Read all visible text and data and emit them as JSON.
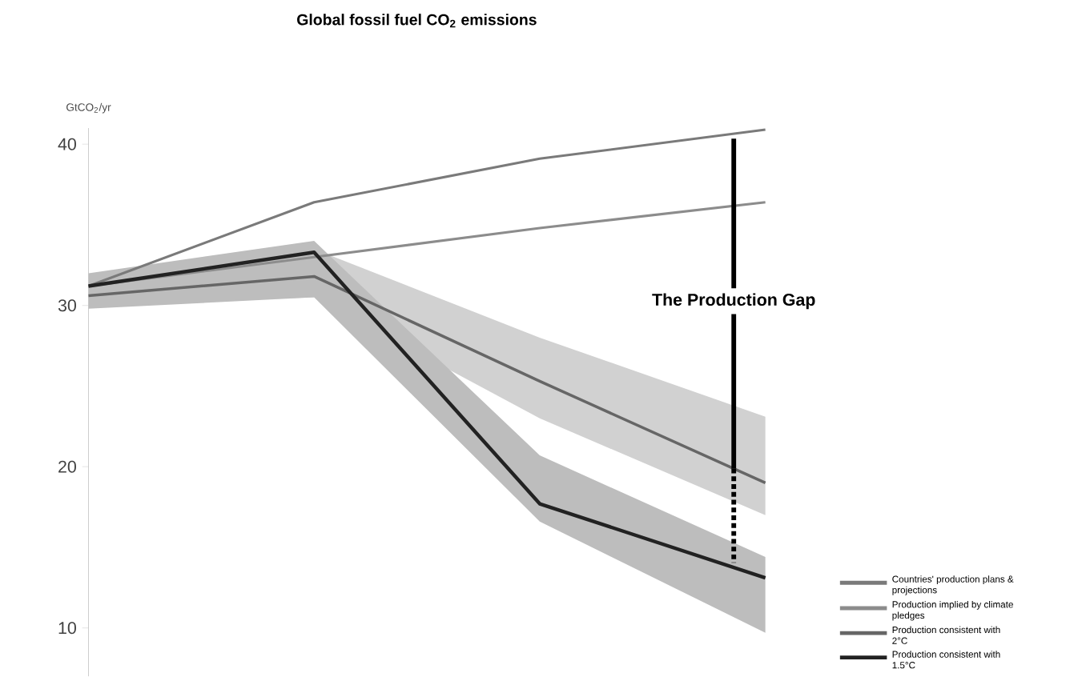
{
  "chart_data": {
    "type": "line",
    "title": "Global fossil fuel CO$_{2}$ emissions",
    "ylabel": "GtCO$_{2}$/yr",
    "categories": [
      null,
      null,
      null,
      null
    ],
    "series": [
      {
        "name": "Countries' production plans & projections",
        "color": "#7a7a7a",
        "values": [
          31.2,
          36.4,
          39.1,
          40.9
        ]
      },
      {
        "name": "Production implied by climate pledges",
        "color": "#8c8c8c",
        "values": [
          31.2,
          33.0,
          34.8,
          36.4
        ]
      },
      {
        "name": "Production consistent with 2°C",
        "color": "#666666",
        "values": [
          30.6,
          31.8,
          25.3,
          19.0
        ],
        "lower": [
          30.0,
          30.5,
          23.0,
          17.0
        ],
        "upper": [
          31.6,
          33.5,
          28.0,
          23.1
        ]
      },
      {
        "name": "Production consistent with 1.5°C",
        "color": "#222222",
        "values": [
          31.2,
          33.3,
          17.7,
          13.1
        ],
        "lower": [
          29.8,
          30.5,
          16.6,
          9.7
        ],
        "upper": [
          32.0,
          34.0,
          20.7,
          14.4
        ]
      }
    ],
    "ylim": [
      7,
      41
    ],
    "yticks": [
      10,
      20,
      30,
      40
    ],
    "tick_labels": "y",
    "legend": "bottom right",
    "annotations": [
      "The Production Gap"
    ]
  }
}
